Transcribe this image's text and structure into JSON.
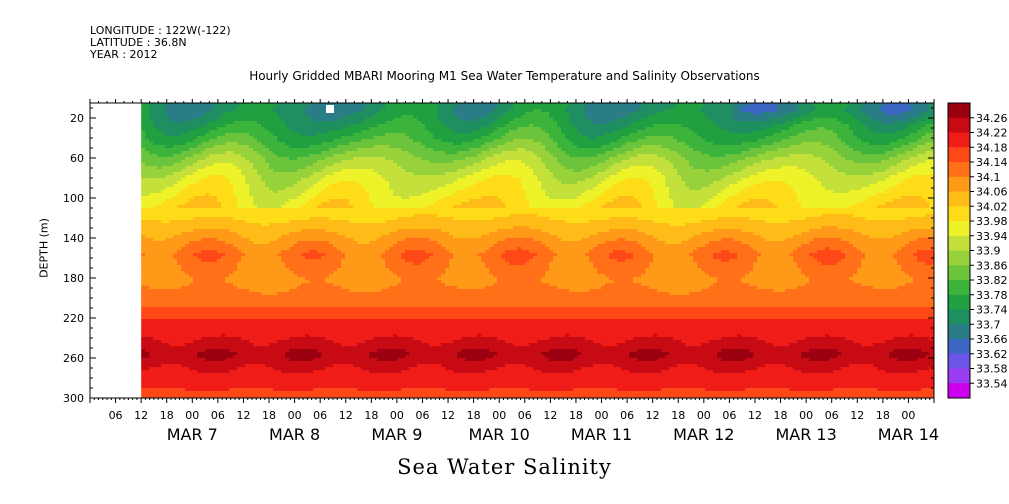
{
  "header": {
    "longitude": "LONGITUDE : 122W(-122)",
    "latitude": "LATITUDE : 36.8N",
    "year": "YEAR : 2012"
  },
  "chart_data": {
    "type": "heatmap",
    "title": "Hourly Gridded MBARI Mooring M1 Sea Water Temperature and Salinity Observations",
    "xlabel": "Sea Water Salinity",
    "ylabel": "DEPTH (m)",
    "x_axis": {
      "start": "2012-03-06 00:00",
      "end": "2012-03-14 06:00",
      "hour_ticks": [
        "06",
        "12",
        "18",
        "00",
        "06",
        "12",
        "18",
        "00",
        "06",
        "12",
        "18",
        "00",
        "06",
        "12",
        "18",
        "00",
        "06",
        "12",
        "18",
        "00",
        "06",
        "12",
        "18",
        "00",
        "06",
        "12",
        "18",
        "00",
        "06",
        "12",
        "18",
        "00"
      ],
      "date_labels": [
        "MAR  7",
        "MAR  8",
        "MAR  9",
        "MAR 10",
        "MAR 11",
        "MAR 12",
        "MAR 13",
        "MAR 14"
      ],
      "data_start": "2012-03-06 12:00"
    },
    "y_axis": {
      "range": [
        300,
        5
      ],
      "ticks": [
        20,
        60,
        100,
        140,
        180,
        220,
        260,
        300
      ],
      "inverted": true
    },
    "colorbar": {
      "levels": [
        33.54,
        33.58,
        33.62,
        33.66,
        33.7,
        33.74,
        33.78,
        33.82,
        33.86,
        33.9,
        33.94,
        33.98,
        34.02,
        34.06,
        34.1,
        34.14,
        34.18,
        34.22,
        34.26
      ],
      "labels": [
        "34.26",
        "34.22",
        "34.18",
        "34.14",
        "34.1",
        "34.06",
        "34.02",
        "33.98",
        "33.94",
        "33.9",
        "33.86",
        "33.82",
        "33.78",
        "33.74",
        "33.7",
        "33.66",
        "33.62",
        "33.58",
        "33.54"
      ],
      "colors": [
        "#cc00ee",
        "#9a3cf0",
        "#6a55e8",
        "#3c68c4",
        "#2a7d86",
        "#1f8e60",
        "#20a040",
        "#3cb43c",
        "#6cc43c",
        "#98d23a",
        "#c4e03a",
        "#eef228",
        "#ffdc18",
        "#ffbc18",
        "#ff9a18",
        "#ff7018",
        "#ff4818",
        "#f01c18",
        "#c80a14",
        "#9a0010"
      ]
    },
    "profile": [
      {
        "depth": 10,
        "salinity": 33.72
      },
      {
        "depth": 20,
        "salinity": 33.74
      },
      {
        "depth": 40,
        "salinity": 33.8
      },
      {
        "depth": 60,
        "salinity": 33.88
      },
      {
        "depth": 80,
        "salinity": 33.94
      },
      {
        "depth": 100,
        "salinity": 33.98
      },
      {
        "depth": 120,
        "salinity": 34.02
      },
      {
        "depth": 140,
        "salinity": 34.08
      },
      {
        "depth": 155,
        "salinity": 34.12
      },
      {
        "depth": 180,
        "salinity": 34.09
      },
      {
        "depth": 200,
        "salinity": 34.12
      },
      {
        "depth": 220,
        "salinity": 34.18
      },
      {
        "depth": 240,
        "salinity": 34.22
      },
      {
        "depth": 255,
        "salinity": 34.26
      },
      {
        "depth": 270,
        "salinity": 34.22
      },
      {
        "depth": 285,
        "salinity": 34.19
      },
      {
        "depth": 300,
        "salinity": 34.16
      }
    ]
  }
}
